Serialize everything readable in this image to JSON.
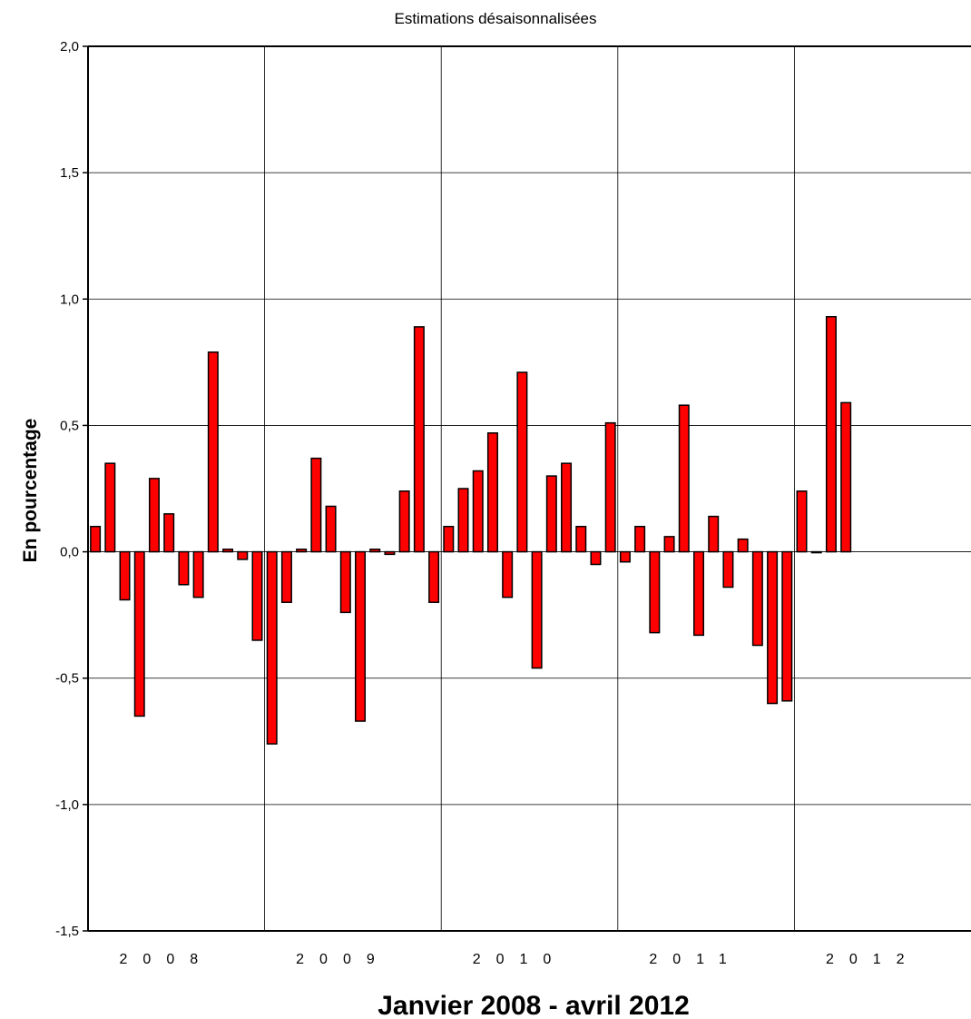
{
  "chart_data": {
    "type": "bar",
    "title": "Estimations désaisonnalisées",
    "xlabel": "Janvier 2008 - avril 2012",
    "ylabel": "En pourcentage",
    "ylim": [
      -1.5,
      2.0
    ],
    "yticks": [
      "2,0",
      "1,5",
      "1,0",
      "0,5",
      "0,0",
      "-0,5",
      "-1,0",
      "-1,5"
    ],
    "ytick_values": [
      2.0,
      1.5,
      1.0,
      0.5,
      0.0,
      -0.5,
      -1.0,
      -1.5
    ],
    "grid": true,
    "bar_color": "#ff0000",
    "year_labels": [
      "2008",
      "2009",
      "2010",
      "2011",
      "2012"
    ],
    "categories": [
      "2008-01",
      "2008-02",
      "2008-03",
      "2008-04",
      "2008-05",
      "2008-06",
      "2008-07",
      "2008-08",
      "2008-09",
      "2008-10",
      "2008-11",
      "2008-12",
      "2009-01",
      "2009-02",
      "2009-03",
      "2009-04",
      "2009-05",
      "2009-06",
      "2009-07",
      "2009-08",
      "2009-09",
      "2009-10",
      "2009-11",
      "2009-12",
      "2010-01",
      "2010-02",
      "2010-03",
      "2010-04",
      "2010-05",
      "2010-06",
      "2010-07",
      "2010-08",
      "2010-09",
      "2010-10",
      "2010-11",
      "2010-12",
      "2011-01",
      "2011-02",
      "2011-03",
      "2011-04",
      "2011-05",
      "2011-06",
      "2011-07",
      "2011-08",
      "2011-09",
      "2011-10",
      "2011-11",
      "2011-12",
      "2012-01",
      "2012-02",
      "2012-03",
      "2012-04"
    ],
    "values": [
      0.1,
      0.35,
      -0.19,
      -0.65,
      0.29,
      0.15,
      -0.13,
      -0.18,
      0.79,
      0.01,
      -0.03,
      -0.35,
      -0.76,
      -0.2,
      0.01,
      0.37,
      0.18,
      -0.24,
      -0.67,
      0.01,
      -0.01,
      0.24,
      0.89,
      -0.2,
      0.1,
      0.25,
      0.32,
      0.47,
      -0.18,
      0.71,
      -0.46,
      0.3,
      0.35,
      0.1,
      -0.05,
      0.51,
      -0.04,
      0.1,
      -0.32,
      0.06,
      0.58,
      -0.33,
      0.14,
      -0.14,
      0.05,
      -0.37,
      -0.6,
      -0.59,
      0.24,
      0.0,
      0.93,
      0.59
    ]
  }
}
